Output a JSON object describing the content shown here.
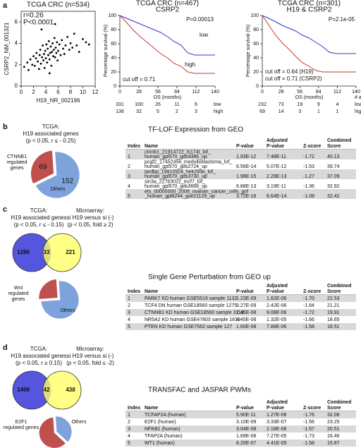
{
  "panel_labels": [
    "a",
    "b",
    "c",
    "d"
  ],
  "chart_data": [
    {
      "type": "scatter",
      "title": "TCGA CRC (n=534)",
      "x_label": "H19_NR_002196",
      "y_label": "CSRP2_NM_001321",
      "annotations": [
        "r=0.26",
        "P<0.0001"
      ],
      "color": "#000000",
      "xlim": [
        0,
        12
      ],
      "xticks": [
        0,
        2,
        4,
        6,
        8,
        10,
        12
      ],
      "ylim": [
        0,
        7
      ],
      "yticks": [
        0,
        2,
        4,
        6
      ],
      "x": [
        0.5,
        1,
        1.2,
        1.5,
        1.8,
        2,
        2.2,
        2.4,
        2.5,
        2.7,
        2.9,
        3,
        3.1,
        3.2,
        3.4,
        3.5,
        3.6,
        3.7,
        3.8,
        3.9,
        4,
        4.1,
        4.2,
        4.3,
        4.4,
        4.5,
        4.6,
        4.7,
        4.8,
        4.9,
        5,
        5.1,
        5.2,
        5.3,
        5.4,
        5.5,
        5.6,
        5.7,
        5.8,
        5.9,
        6,
        6.2,
        6.4,
        6.6,
        6.8,
        7,
        7.2,
        7.5,
        7.8,
        8,
        8.3,
        8.6,
        9,
        9.4,
        10,
        10.5,
        11,
        3.3,
        4.6,
        5.5
      ],
      "values": [
        1.8,
        2.2,
        1.5,
        2.5,
        2,
        2.8,
        1.9,
        2.6,
        3.1,
        2.3,
        1.6,
        2.9,
        3.4,
        2.1,
        2.7,
        3.8,
        2.4,
        3,
        1.7,
        3.3,
        2.6,
        3.9,
        2.2,
        3.5,
        2.9,
        4.2,
        2.5,
        3.1,
        3.7,
        1.9,
        3.2,
        4,
        2.8,
        3.4,
        4.5,
        2.7,
        3.6,
        3.1,
        4.1,
        2.4,
        3.3,
        3.9,
        2.9,
        4.3,
        3.5,
        3,
        3.8,
        4.6,
        3.4,
        4,
        3.6,
        4.9,
        3.8,
        3.2,
        4.4,
        4.1,
        3.9,
        5.3,
        1.2,
        5.8
      ]
    },
    {
      "type": "line",
      "title": [
        "TCGA CRC (n=467)",
        "CSRP2"
      ],
      "x_label": "OS (months)",
      "y_label": "Percentage survival (%)",
      "annotations": [
        "P=0.00013",
        "cut off = 0.71"
      ],
      "xlim": [
        0,
        140
      ],
      "xticks": [
        0,
        28,
        56,
        84,
        112,
        140
      ],
      "ylim": [
        0,
        100
      ],
      "yticks": [
        0,
        20,
        40,
        60,
        80,
        100
      ],
      "x": [
        0,
        10,
        20,
        30,
        40,
        50,
        60,
        70,
        80,
        90,
        100,
        110,
        120,
        140
      ],
      "series": [
        {
          "name": "low",
          "color": "#3333cc",
          "values": [
            100,
            96,
            92,
            88,
            84,
            80,
            76,
            70,
            63,
            58,
            47,
            44,
            44,
            44
          ],
          "risk": [
            331,
            100,
            26,
            11,
            6
          ]
        },
        {
          "name": "high",
          "color": "#cc3333",
          "values": [
            100,
            90,
            79,
            70,
            62,
            54,
            46,
            40,
            32,
            28,
            20,
            18,
            18,
            18
          ],
          "risk": [
            136,
            32,
            5,
            2,
            3
          ]
        }
      ]
    },
    {
      "type": "line",
      "title": [
        "TCGA CRC (n=301)",
        "H19 & CSRP2"
      ],
      "x_label": "OS (months)",
      "y_label": "Percentage survival (%)",
      "annotations": [
        "P=2.1e-05",
        "cut off = 0.64 (H19)",
        "cut off = 0.71 (CSRP2)"
      ],
      "risk_header": "# at risk",
      "xlim": [
        0,
        140
      ],
      "xticks": [
        0,
        28,
        56,
        84,
        112,
        140
      ],
      "ylim": [
        0,
        100
      ],
      "yticks": [
        0,
        20,
        40,
        60,
        80,
        100
      ],
      "x": [
        0,
        10,
        20,
        30,
        40,
        50,
        60,
        70,
        80,
        90,
        100,
        110,
        120,
        140
      ],
      "series": [
        {
          "name": "low&low",
          "color": "#3333cc",
          "values": [
            100,
            96,
            91,
            86,
            82,
            78,
            72,
            68,
            62,
            56,
            48,
            46,
            46,
            46
          ],
          "risk": [
            232,
            73,
            19,
            9,
            4
          ]
        },
        {
          "name": "high&high",
          "color": "#cc3333",
          "values": [
            100,
            86,
            72,
            61,
            52,
            42,
            33,
            28,
            22,
            20,
            20,
            20,
            20,
            20
          ],
          "risk": [
            69,
            14,
            3,
            1,
            1
          ]
        }
      ]
    },
    {
      "type": "pie",
      "categories": [
        [
          "CTNNB1",
          "regulated",
          "genes"
        ],
        [
          "Others"
        ]
      ],
      "values": [
        69,
        152
      ],
      "colors": [
        "#c0504d",
        "#7ea3dc"
      ]
    },
    {
      "type": "pie",
      "categories": [
        [
          "Wnt",
          "regulated",
          "genes"
        ],
        [
          "Others"
        ]
      ],
      "values": [
        25,
        75
      ],
      "colors": [
        "#c0504d",
        "#7ea3dc"
      ]
    },
    {
      "type": "pie",
      "categories": [
        [
          "E2F1",
          "regulated genes"
        ],
        [
          "Others"
        ]
      ],
      "values": [
        62,
        38
      ],
      "colors": [
        "#c0504d",
        "#7ea3dc"
      ]
    }
  ],
  "group_text": {
    "b": {
      "tcga": [
        "TCGA:",
        "H19 associated genes",
        "(p < 0.05, r ≤ - 0.25)"
      ]
    },
    "c": {
      "tcga": [
        "TCGA:",
        "H19 associated genes",
        "(p < 0.05, r ≤ - 0.15)"
      ],
      "array": [
        "Microarray:",
        "si H19 versus si (-)",
        "(p < 0.05, fold ≥ 2)"
      ]
    },
    "d": {
      "tcga": [
        "TCGA:",
        "H19 associated genes",
        "(p < 0.05, r ≥ 0.15)"
      ],
      "array": [
        "Microarray:",
        "si H19 versus si (-)",
        "(p < 0.05, fold ≤ -2)"
      ]
    }
  },
  "venns": [
    {
      "left": 1286,
      "both": 33,
      "right": 221
    },
    {
      "left": 1498,
      "both": 42,
      "right": 438
    }
  ],
  "tables": [
    {
      "title": "TF-LOF Expression from GEO",
      "headers": [
        [
          "Index"
        ],
        [
          "Name"
        ],
        [
          "P-value"
        ],
        [
          "Adjusted",
          "P-value"
        ],
        [
          "Z-score"
        ],
        [
          "Combined",
          "Score"
        ]
      ],
      "rows": [
        [
          1,
          [
            "ctnnb1_21914722_ls174t_lof_",
            "human_gpl570_gds4386_up"
          ],
          "1.93E-12",
          "7.48E-11",
          "-1.72",
          "40.13"
        ],
        [
          2,
          [
            "pcgf2_17452456_medulloblastoma_lof_",
            "human_gpl570_gds2724_up"
          ],
          "6.56E-14",
          "5.07E-12",
          "-1.53",
          "39.74"
        ],
        [
          3,
          [
            "tardbp_19910924_hek293e_lof_",
            "human_gpl570_gds3730_up"
          ],
          "1.98E-15",
          "2.29E-13",
          "-1.27",
          "37.09"
        ],
        [
          4,
          [
            "sin3a_22783022_mcf7_lof_",
            "human_gpl570_gds3668_up"
          ],
          "6.88E-13",
          "3.19E-11",
          "-1.36",
          "32.92"
        ],
        [
          5,
          [
            "ets_00000000_2008_ovarian_cancer_cells_gof",
            "_human_gpl6244_gse21129_up"
          ],
          "3.72E-16",
          "8.64E-14",
          "-1.08",
          "32.42"
        ]
      ]
    },
    {
      "title": "Single Gene Perturbation from GEO up",
      "headers": [
        [
          "Index"
        ],
        [
          "Name"
        ],
        [
          "P-value"
        ],
        [
          "Adjusted",
          "P-value"
        ],
        [
          "Z-score"
        ],
        [
          "Combined",
          "Score"
        ]
      ],
      "rows": [
        [
          1,
          [
            "PARK7 KD human GSE5519 sample 1132"
          ],
          "1.23E-09",
          "1.82E-06",
          "-1.70",
          "22.53"
        ],
        [
          2,
          [
            "TCF4 DN human GSE18560 sample 1275"
          ],
          "3.27E-09",
          "2.42E-06",
          "-1.64",
          "21.21"
        ],
        [
          3,
          [
            "CTNNB1 KD human GSE18560 sample 3119"
          ],
          "2.45E-08",
          "9.08E-06",
          "-1.72",
          "19.91"
        ],
        [
          4,
          [
            "NR5A2 KD human GSE47803 sample 1819"
          ],
          "4.45E-08",
          "1.32E-05",
          "-1.66",
          "18.65"
        ],
        [
          5,
          [
            "PTEN KD human GSE7562 sample 127"
          ],
          "1.60E-08",
          "7.88E-06",
          "-1.58",
          "18.51"
        ]
      ]
    },
    {
      "title": "TRANSFAC and JASPAR PWMs",
      "headers": [
        [
          "Index"
        ],
        [
          "Name"
        ],
        [
          "P-value"
        ],
        [
          "Adjusted",
          "P-value"
        ],
        [
          "Z-score"
        ],
        [
          "Combined",
          "Score"
        ]
      ],
      "rows": [
        [
          1,
          [
            "TCFAP2A (human)"
          ],
          "5.90E-11",
          "1.27E-08",
          "-1.76",
          "32.08"
        ],
        [
          2,
          [
            "E2F1 (human)"
          ],
          "3.10E-09",
          "3.33E-07",
          "-1.56",
          "23.25"
        ],
        [
          3,
          [
            "NFKB1 (human)"
          ],
          "3.04E-08",
          "2.18E-06",
          "-1.57",
          "20.51"
        ],
        [
          4,
          [
            "TFAP2A (human)"
          ],
          "1.69E-06",
          "7.27E-05",
          "-1.73",
          "16.46"
        ],
        [
          5,
          [
            "WT1 (human)"
          ],
          "8.20E-07",
          "4.41E-05",
          "-1.58",
          "15.87"
        ]
      ]
    }
  ]
}
